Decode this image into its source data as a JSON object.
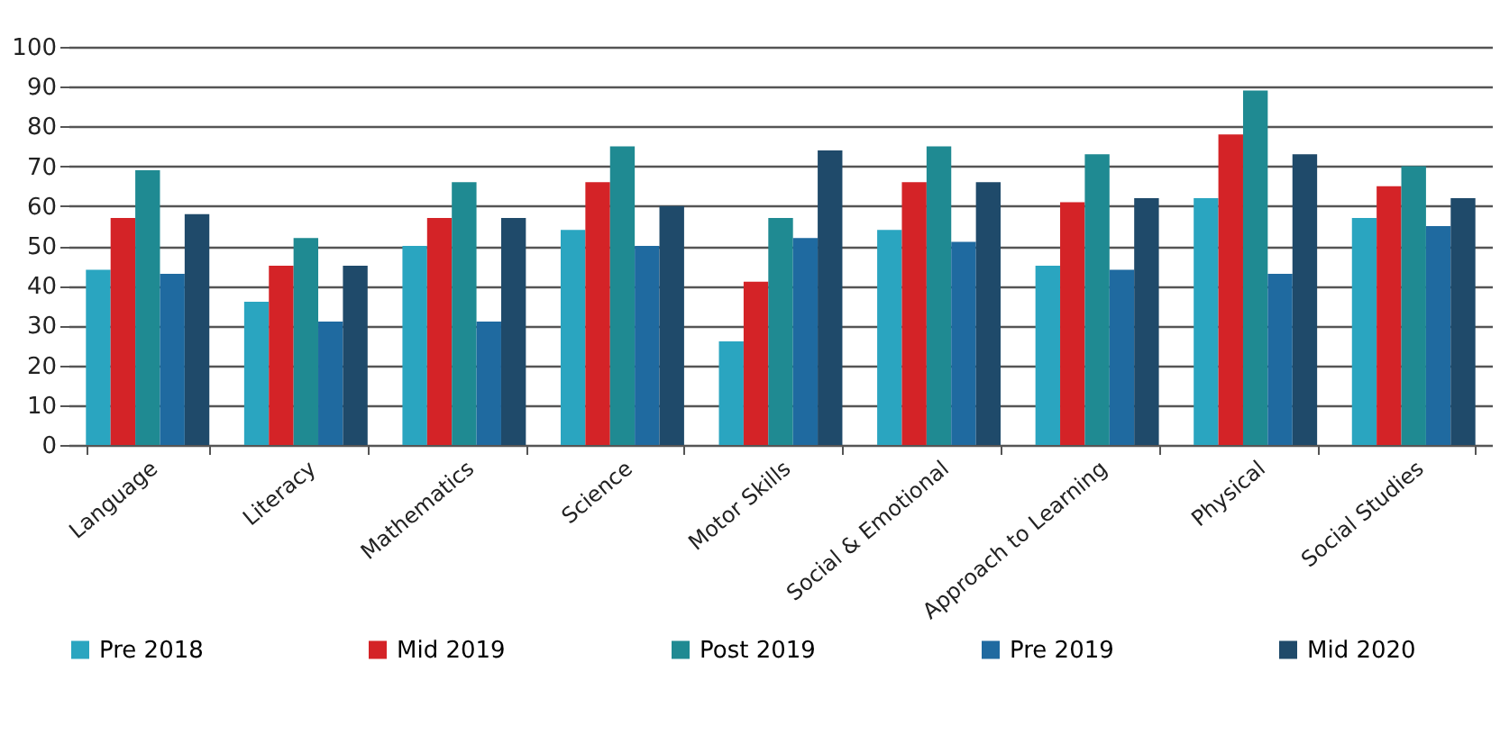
{
  "chart_data": {
    "type": "bar",
    "categories": [
      "Language",
      "Literacy",
      "Mathematics",
      "Science",
      "Motor Skills",
      "Social & Emotional",
      "Approach to Learning",
      "Physical",
      "Social Studies"
    ],
    "series": [
      {
        "name": "Pre 2018",
        "color": "#2aa5c0",
        "values": [
          44,
          36,
          50,
          54,
          26,
          54,
          45,
          62,
          57
        ]
      },
      {
        "name": "Mid 2019",
        "color": "#d42327",
        "values": [
          57,
          45,
          57,
          66,
          41,
          66,
          61,
          78,
          65
        ]
      },
      {
        "name": "Post 2019",
        "color": "#1f8a92",
        "values": [
          69,
          52,
          66,
          75,
          57,
          75,
          73,
          89,
          70
        ]
      },
      {
        "name": "Pre 2019",
        "color": "#1f6aa0",
        "values": [
          43,
          31,
          31,
          50,
          52,
          51,
          44,
          43,
          55
        ]
      },
      {
        "name": "Mid 2020",
        "color": "#1f4a6a",
        "values": [
          58,
          45,
          57,
          60,
          74,
          66,
          62,
          73,
          62
        ]
      }
    ],
    "ylim": [
      0,
      100
    ],
    "yticks": [
      0,
      10,
      20,
      30,
      40,
      50,
      60,
      70,
      80,
      90,
      100
    ],
    "grid": "y",
    "legend": "bottom"
  }
}
